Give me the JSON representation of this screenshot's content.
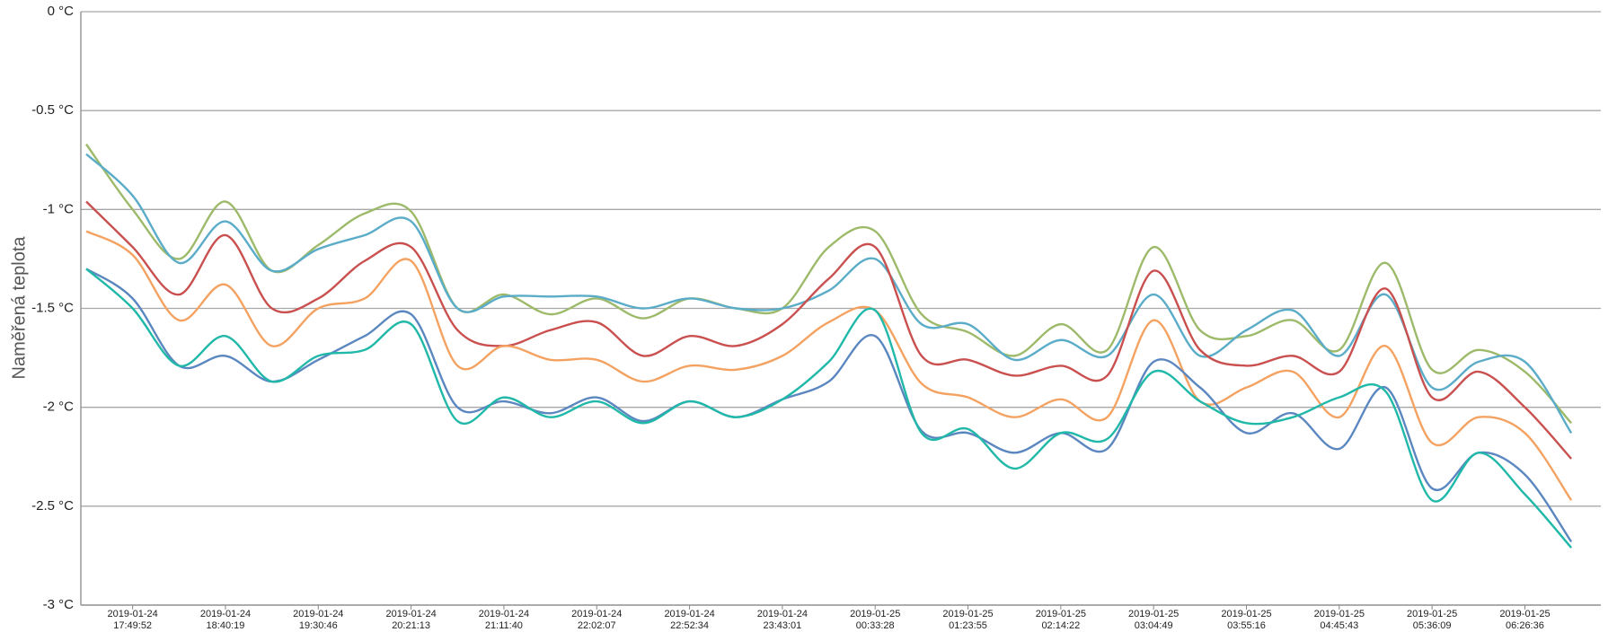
{
  "chart_data": {
    "type": "line",
    "y_label": "Naměřená teplota",
    "ylim": [
      -3,
      0
    ],
    "yticks": [
      {
        "value": 0,
        "label": "0 °C"
      },
      {
        "value": -0.5,
        "label": "-0.5 °C"
      },
      {
        "value": -1,
        "label": "-1 °C"
      },
      {
        "value": -1.5,
        "label": "-1.5 °C"
      },
      {
        "value": -2,
        "label": "-2 °C"
      },
      {
        "value": -2.5,
        "label": "-2.5 °C"
      },
      {
        "value": -3,
        "label": "-3 °C"
      }
    ],
    "grid": true,
    "categories": [
      null,
      "2019-01-24\n17:49:52",
      null,
      "2019-01-24\n18:40:19",
      null,
      "2019-01-24\n19:30:46",
      null,
      "2019-01-24\n20:21:13",
      null,
      "2019-01-24\n21:11:40",
      null,
      "2019-01-24\n22:02:07",
      null,
      "2019-01-24\n22:52:34",
      null,
      "2019-01-24\n23:43:01",
      null,
      "2019-01-25\n00:33:28",
      null,
      "2019-01-25\n01:23:55",
      null,
      "2019-01-25\n02:14:22",
      null,
      "2019-01-25\n03:04:49",
      null,
      "2019-01-25\n03:55:16",
      null,
      "2019-01-25\n04:45:43",
      null,
      "2019-01-25\n05:36:09",
      null,
      "2019-01-25\n06:26:36",
      null
    ],
    "series": [
      {
        "color": "#9dba6a",
        "values": [
          -0.67,
          -1.0,
          -1.25,
          -0.96,
          -1.31,
          -1.18,
          -1.02,
          -1.01,
          -1.5,
          -1.43,
          -1.53,
          -1.45,
          -1.55,
          -1.45,
          -1.5,
          -1.5,
          -1.19,
          -1.11,
          -1.53,
          -1.62,
          -1.74,
          -1.58,
          -1.71,
          -1.19,
          -1.61,
          -1.64,
          -1.56,
          -1.71,
          -1.27,
          -1.81,
          -1.71,
          -1.82,
          -2.08
        ]
      },
      {
        "color": "#5aacc8",
        "values": [
          -0.72,
          -0.93,
          -1.27,
          -1.06,
          -1.31,
          -1.2,
          -1.13,
          -1.06,
          -1.5,
          -1.44,
          -1.44,
          -1.44,
          -1.5,
          -1.45,
          -1.5,
          -1.5,
          -1.41,
          -1.25,
          -1.58,
          -1.58,
          -1.76,
          -1.66,
          -1.74,
          -1.43,
          -1.74,
          -1.61,
          -1.51,
          -1.74,
          -1.43,
          -1.9,
          -1.77,
          -1.77,
          -2.13
        ]
      },
      {
        "color": "#c9504f",
        "values": [
          -0.96,
          -1.19,
          -1.43,
          -1.13,
          -1.5,
          -1.45,
          -1.26,
          -1.19,
          -1.61,
          -1.69,
          -1.61,
          -1.57,
          -1.74,
          -1.64,
          -1.69,
          -1.58,
          -1.35,
          -1.19,
          -1.74,
          -1.76,
          -1.84,
          -1.79,
          -1.84,
          -1.31,
          -1.71,
          -1.79,
          -1.74,
          -1.82,
          -1.4,
          -1.95,
          -1.82,
          -2.0,
          -2.26
        ]
      },
      {
        "color": "#f4a261",
        "values": [
          -1.11,
          -1.23,
          -1.56,
          -1.38,
          -1.69,
          -1.5,
          -1.45,
          -1.26,
          -1.79,
          -1.69,
          -1.76,
          -1.76,
          -1.87,
          -1.79,
          -1.81,
          -1.74,
          -1.57,
          -1.51,
          -1.88,
          -1.95,
          -2.05,
          -1.96,
          -2.05,
          -1.56,
          -1.97,
          -1.9,
          -1.82,
          -2.05,
          -1.69,
          -2.18,
          -2.05,
          -2.13,
          -2.47
        ]
      },
      {
        "color": "#5b87c0",
        "values": [
          -1.3,
          -1.45,
          -1.79,
          -1.74,
          -1.87,
          -1.76,
          -1.64,
          -1.53,
          -2.0,
          -1.97,
          -2.03,
          -1.95,
          -2.07,
          -1.97,
          -2.05,
          -1.96,
          -1.87,
          -1.64,
          -2.12,
          -2.13,
          -2.23,
          -2.13,
          -2.21,
          -1.77,
          -1.9,
          -2.13,
          -2.03,
          -2.21,
          -1.9,
          -2.41,
          -2.23,
          -2.34,
          -2.68
        ]
      },
      {
        "color": "#20b8a8",
        "values": [
          -1.3,
          -1.5,
          -1.79,
          -1.64,
          -1.87,
          -1.74,
          -1.71,
          -1.58,
          -2.07,
          -1.95,
          -2.05,
          -1.97,
          -2.08,
          -1.97,
          -2.05,
          -1.96,
          -1.77,
          -1.51,
          -2.13,
          -2.11,
          -2.31,
          -2.13,
          -2.16,
          -1.82,
          -1.97,
          -2.08,
          -2.05,
          -1.95,
          -1.92,
          -2.47,
          -2.23,
          -2.44,
          -2.71
        ]
      }
    ]
  }
}
